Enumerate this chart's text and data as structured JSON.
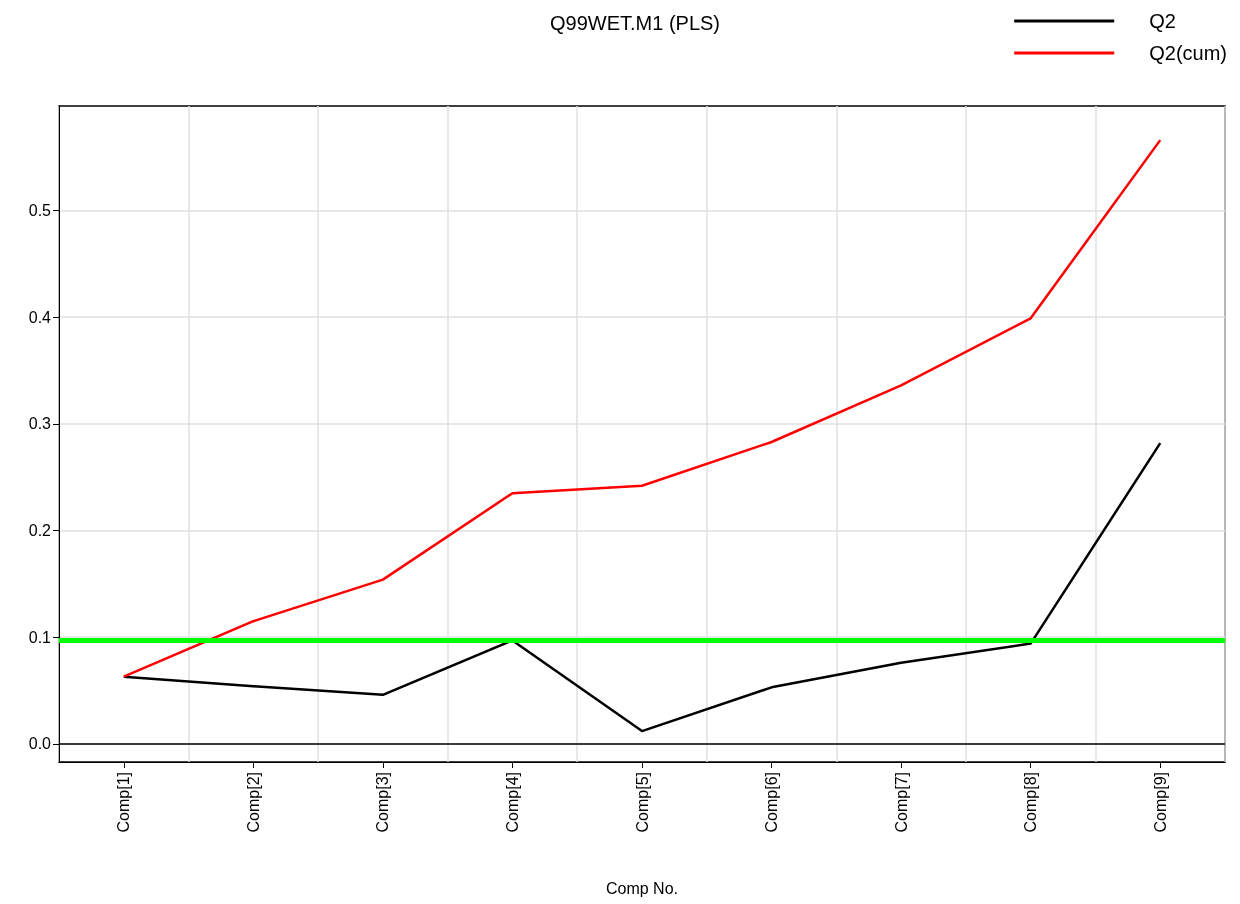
{
  "chart_data": {
    "type": "line",
    "title": "Q99WET.M1 (PLS)",
    "xlabel": "Comp No.",
    "categories": [
      "Comp[1]",
      "Comp[2]",
      "Comp[3]",
      "Comp[4]",
      "Comp[5]",
      "Comp[6]",
      "Comp[7]",
      "Comp[8]",
      "Comp[9]"
    ],
    "series": [
      {
        "name": "Q2",
        "color": "#000000",
        "values": [
          0.063,
          0.054,
          0.046,
          0.097,
          0.012,
          0.053,
          0.076,
          0.094,
          0.282
        ]
      },
      {
        "name": "Q2(cum)",
        "color": "#ff0000",
        "values": [
          0.063,
          0.115,
          0.154,
          0.235,
          0.242,
          0.283,
          0.336,
          0.399,
          0.566
        ]
      }
    ],
    "ylim": [
      -0.017,
      0.598
    ],
    "yticks": [
      {
        "value": 0,
        "label": "0.0"
      },
      0.1,
      0.2,
      0.3,
      0.4,
      0.5
    ],
    "ref_lines": [
      {
        "axis": "y",
        "value": 0,
        "color": "#000000",
        "label": null
      },
      {
        "axis": "y",
        "value": 0.097,
        "color": "#00ff00",
        "label": null
      }
    ],
    "grid": true,
    "legend": "top right",
    "marker": "none",
    "line_style": "solid"
  }
}
